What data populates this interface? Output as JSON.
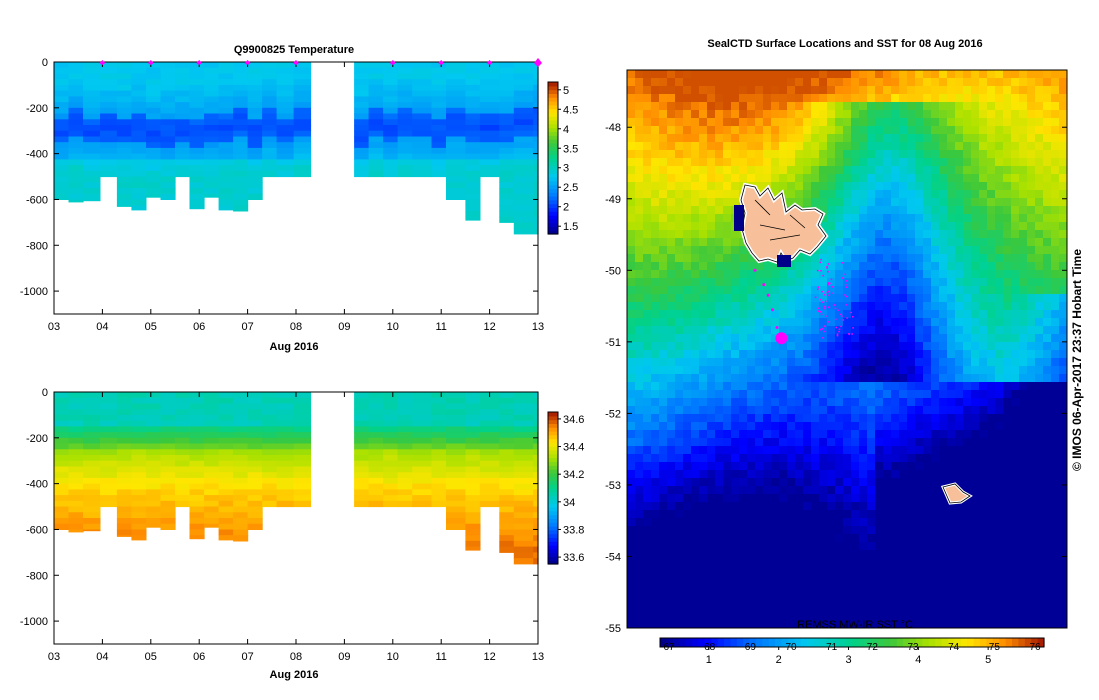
{
  "chart_data": [
    {
      "type": "heatmap",
      "title": "Q9900825  Temperature",
      "xlabel": "Aug 2016",
      "x_ticks": [
        "03",
        "04",
        "05",
        "06",
        "07",
        "08",
        "09",
        "10",
        "11",
        "12",
        "13"
      ],
      "x_range": [
        3,
        13
      ],
      "y_ticks": [
        "0",
        "-200",
        "-400",
        "-600",
        "-800",
        "-1000"
      ],
      "y_range": [
        0,
        -1100
      ],
      "colorbar_ticks": [
        "5",
        "4.5",
        "4",
        "3.5",
        "3",
        "2.5",
        "2",
        "1.5"
      ],
      "colorbar_range": [
        1.3,
        5.2
      ],
      "profiles_day": [
        3.0,
        3.3,
        3.6,
        3.95,
        4.3,
        4.6,
        4.9,
        5.2,
        5.5,
        5.8,
        6.1,
        6.4,
        6.7,
        7.0,
        7.3,
        7.6,
        7.95,
        8.3,
        9.2,
        9.5,
        9.8,
        10.1,
        10.4,
        10.8,
        11.1,
        11.5,
        11.8,
        12.2,
        12.5,
        12.9
      ],
      "profiles_max_depth": [
        600,
        610,
        605,
        500,
        630,
        645,
        590,
        600,
        500,
        640,
        590,
        645,
        650,
        600,
        500,
        500,
        500,
        500,
        500,
        500,
        500,
        500,
        500,
        500,
        600,
        690,
        500,
        700,
        750,
        750
      ],
      "surface_markers_day": [
        4,
        5,
        6,
        7,
        8,
        10,
        11,
        12,
        13
      ]
    },
    {
      "type": "heatmap",
      "title": "",
      "xlabel": "Aug 2016",
      "x_ticks": [
        "03",
        "04",
        "05",
        "06",
        "07",
        "08",
        "09",
        "10",
        "11",
        "12",
        "13"
      ],
      "x_range": [
        3,
        13
      ],
      "y_ticks": [
        "0",
        "-200",
        "-400",
        "-600",
        "-800",
        "-1000"
      ],
      "y_range": [
        0,
        -1100
      ],
      "colorbar_ticks": [
        "34.6",
        "34.4",
        "34.2",
        "34",
        "33.8",
        "33.6"
      ],
      "colorbar_range": [
        33.55,
        34.65
      ],
      "profiles_day": [
        3.0,
        3.3,
        3.6,
        3.95,
        4.3,
        4.6,
        4.9,
        5.2,
        5.5,
        5.8,
        6.1,
        6.4,
        6.7,
        7.0,
        7.3,
        7.6,
        7.95,
        8.3,
        9.2,
        9.5,
        9.8,
        10.1,
        10.4,
        10.8,
        11.1,
        11.5,
        11.8,
        12.2,
        12.5,
        12.9
      ],
      "profiles_max_depth": [
        600,
        610,
        605,
        500,
        630,
        645,
        590,
        600,
        500,
        640,
        590,
        645,
        650,
        600,
        500,
        500,
        500,
        500,
        500,
        500,
        500,
        500,
        500,
        500,
        600,
        690,
        500,
        700,
        750,
        750
      ]
    },
    {
      "type": "heatmap",
      "title": "SealCTD Surface Locations and SST for 08 Aug 2016",
      "y_ticks": [
        "-48",
        "-49",
        "-50",
        "-51",
        "-52",
        "-53",
        "-54",
        "-55"
      ],
      "y_range": [
        -47.2,
        -55.0
      ],
      "colorbar_label": "REMSS MW-IR SST °C",
      "colorbar_ticks": [
        "1",
        "2",
        "3",
        "4",
        "5"
      ],
      "colorbar_top_ticks": [
        "67",
        "68",
        "69",
        "70",
        "71",
        "72",
        "73",
        "74",
        "75",
        "76"
      ],
      "colorbar_range": [
        0.3,
        5.8
      ],
      "seal_locations": [
        {
          "lat": -50.0,
          "tlon": 0.25
        },
        {
          "lat": -50.2,
          "tlon": 0.27
        },
        {
          "lat": -50.35,
          "tlon": 0.28
        },
        {
          "lat": -50.55,
          "tlon": 0.29
        },
        {
          "lat": -50.8,
          "tlon": 0.3
        },
        {
          "lat": -50.9,
          "tlon": 0.305
        },
        {
          "lat": -50.95,
          "tlon": 0.31
        }
      ],
      "credit": "© IMOS 06-Apr-2017 23:37 Hobart Time"
    }
  ]
}
